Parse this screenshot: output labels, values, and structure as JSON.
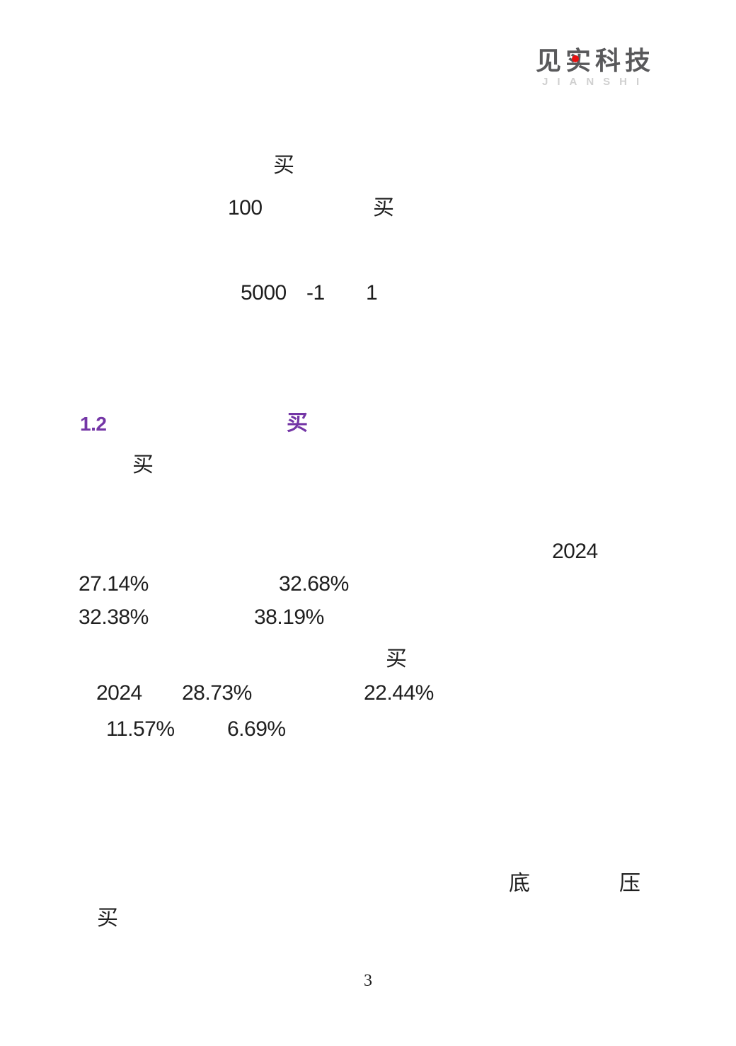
{
  "page": {
    "background": "#ffffff",
    "text_color": "#1f1f1f",
    "page_number": "3"
  },
  "logo": {
    "brand_text": "见实科技",
    "brand_subtext": "JIANSHI",
    "brand_color": "#59595b",
    "subtext_color": "#d0d0d0",
    "dot_color": "#e60f0f"
  },
  "content": {
    "accent_color": "#7436a6",
    "line1": {
      "char": "买"
    },
    "line2": {
      "value": "100",
      "char": "买"
    },
    "line3": {
      "v1": "5000",
      "v2": "-1",
      "v3": "1"
    },
    "heading": {
      "number": "1.2",
      "char": "买"
    },
    "paragraph": {
      "lead_char": "买"
    },
    "stats": {
      "year_right": "2024",
      "row1": {
        "a": "27.14%",
        "b": "32.68%"
      },
      "row2": {
        "a": "32.38%",
        "b": "38.19%"
      },
      "char": "买",
      "row3": {
        "year": "2024",
        "a": "28.73%",
        "b": "22.44%"
      },
      "row4": {
        "a": "11.57%",
        "b": "6.69%"
      }
    },
    "closing": {
      "char1": "底",
      "char2": "压",
      "char3": "买"
    }
  }
}
